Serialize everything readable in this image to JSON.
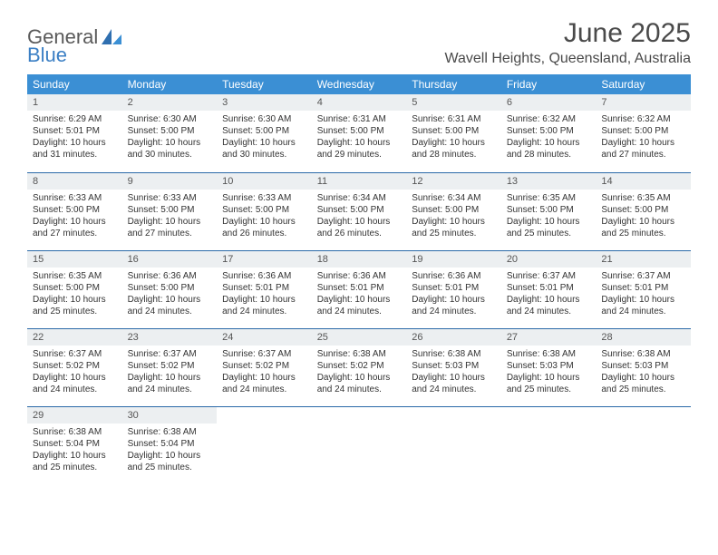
{
  "logo": {
    "word1": "General",
    "word2": "Blue"
  },
  "title": "June 2025",
  "location": "Wavell Heights, Queensland, Australia",
  "colors": {
    "header_bg": "#3b8fd4",
    "header_text": "#ffffff",
    "row_divider": "#2b6aa8",
    "daynum_bg": "#eceff1",
    "text": "#333333",
    "logo_gray": "#5a5a5a",
    "logo_blue": "#3b7fc4",
    "background": "#ffffff"
  },
  "typography": {
    "title_fontsize": 30,
    "location_fontsize": 16,
    "dayheader_fontsize": 12,
    "daynum_fontsize": 11,
    "body_fontsize": 10
  },
  "day_headers": [
    "Sunday",
    "Monday",
    "Tuesday",
    "Wednesday",
    "Thursday",
    "Friday",
    "Saturday"
  ],
  "weeks": [
    [
      {
        "num": "1",
        "sunrise": "Sunrise: 6:29 AM",
        "sunset": "Sunset: 5:01 PM",
        "dl1": "Daylight: 10 hours",
        "dl2": "and 31 minutes."
      },
      {
        "num": "2",
        "sunrise": "Sunrise: 6:30 AM",
        "sunset": "Sunset: 5:00 PM",
        "dl1": "Daylight: 10 hours",
        "dl2": "and 30 minutes."
      },
      {
        "num": "3",
        "sunrise": "Sunrise: 6:30 AM",
        "sunset": "Sunset: 5:00 PM",
        "dl1": "Daylight: 10 hours",
        "dl2": "and 30 minutes."
      },
      {
        "num": "4",
        "sunrise": "Sunrise: 6:31 AM",
        "sunset": "Sunset: 5:00 PM",
        "dl1": "Daylight: 10 hours",
        "dl2": "and 29 minutes."
      },
      {
        "num": "5",
        "sunrise": "Sunrise: 6:31 AM",
        "sunset": "Sunset: 5:00 PM",
        "dl1": "Daylight: 10 hours",
        "dl2": "and 28 minutes."
      },
      {
        "num": "6",
        "sunrise": "Sunrise: 6:32 AM",
        "sunset": "Sunset: 5:00 PM",
        "dl1": "Daylight: 10 hours",
        "dl2": "and 28 minutes."
      },
      {
        "num": "7",
        "sunrise": "Sunrise: 6:32 AM",
        "sunset": "Sunset: 5:00 PM",
        "dl1": "Daylight: 10 hours",
        "dl2": "and 27 minutes."
      }
    ],
    [
      {
        "num": "8",
        "sunrise": "Sunrise: 6:33 AM",
        "sunset": "Sunset: 5:00 PM",
        "dl1": "Daylight: 10 hours",
        "dl2": "and 27 minutes."
      },
      {
        "num": "9",
        "sunrise": "Sunrise: 6:33 AM",
        "sunset": "Sunset: 5:00 PM",
        "dl1": "Daylight: 10 hours",
        "dl2": "and 27 minutes."
      },
      {
        "num": "10",
        "sunrise": "Sunrise: 6:33 AM",
        "sunset": "Sunset: 5:00 PM",
        "dl1": "Daylight: 10 hours",
        "dl2": "and 26 minutes."
      },
      {
        "num": "11",
        "sunrise": "Sunrise: 6:34 AM",
        "sunset": "Sunset: 5:00 PM",
        "dl1": "Daylight: 10 hours",
        "dl2": "and 26 minutes."
      },
      {
        "num": "12",
        "sunrise": "Sunrise: 6:34 AM",
        "sunset": "Sunset: 5:00 PM",
        "dl1": "Daylight: 10 hours",
        "dl2": "and 25 minutes."
      },
      {
        "num": "13",
        "sunrise": "Sunrise: 6:35 AM",
        "sunset": "Sunset: 5:00 PM",
        "dl1": "Daylight: 10 hours",
        "dl2": "and 25 minutes."
      },
      {
        "num": "14",
        "sunrise": "Sunrise: 6:35 AM",
        "sunset": "Sunset: 5:00 PM",
        "dl1": "Daylight: 10 hours",
        "dl2": "and 25 minutes."
      }
    ],
    [
      {
        "num": "15",
        "sunrise": "Sunrise: 6:35 AM",
        "sunset": "Sunset: 5:00 PM",
        "dl1": "Daylight: 10 hours",
        "dl2": "and 25 minutes."
      },
      {
        "num": "16",
        "sunrise": "Sunrise: 6:36 AM",
        "sunset": "Sunset: 5:00 PM",
        "dl1": "Daylight: 10 hours",
        "dl2": "and 24 minutes."
      },
      {
        "num": "17",
        "sunrise": "Sunrise: 6:36 AM",
        "sunset": "Sunset: 5:01 PM",
        "dl1": "Daylight: 10 hours",
        "dl2": "and 24 minutes."
      },
      {
        "num": "18",
        "sunrise": "Sunrise: 6:36 AM",
        "sunset": "Sunset: 5:01 PM",
        "dl1": "Daylight: 10 hours",
        "dl2": "and 24 minutes."
      },
      {
        "num": "19",
        "sunrise": "Sunrise: 6:36 AM",
        "sunset": "Sunset: 5:01 PM",
        "dl1": "Daylight: 10 hours",
        "dl2": "and 24 minutes."
      },
      {
        "num": "20",
        "sunrise": "Sunrise: 6:37 AM",
        "sunset": "Sunset: 5:01 PM",
        "dl1": "Daylight: 10 hours",
        "dl2": "and 24 minutes."
      },
      {
        "num": "21",
        "sunrise": "Sunrise: 6:37 AM",
        "sunset": "Sunset: 5:01 PM",
        "dl1": "Daylight: 10 hours",
        "dl2": "and 24 minutes."
      }
    ],
    [
      {
        "num": "22",
        "sunrise": "Sunrise: 6:37 AM",
        "sunset": "Sunset: 5:02 PM",
        "dl1": "Daylight: 10 hours",
        "dl2": "and 24 minutes."
      },
      {
        "num": "23",
        "sunrise": "Sunrise: 6:37 AM",
        "sunset": "Sunset: 5:02 PM",
        "dl1": "Daylight: 10 hours",
        "dl2": "and 24 minutes."
      },
      {
        "num": "24",
        "sunrise": "Sunrise: 6:37 AM",
        "sunset": "Sunset: 5:02 PM",
        "dl1": "Daylight: 10 hours",
        "dl2": "and 24 minutes."
      },
      {
        "num": "25",
        "sunrise": "Sunrise: 6:38 AM",
        "sunset": "Sunset: 5:02 PM",
        "dl1": "Daylight: 10 hours",
        "dl2": "and 24 minutes."
      },
      {
        "num": "26",
        "sunrise": "Sunrise: 6:38 AM",
        "sunset": "Sunset: 5:03 PM",
        "dl1": "Daylight: 10 hours",
        "dl2": "and 24 minutes."
      },
      {
        "num": "27",
        "sunrise": "Sunrise: 6:38 AM",
        "sunset": "Sunset: 5:03 PM",
        "dl1": "Daylight: 10 hours",
        "dl2": "and 25 minutes."
      },
      {
        "num": "28",
        "sunrise": "Sunrise: 6:38 AM",
        "sunset": "Sunset: 5:03 PM",
        "dl1": "Daylight: 10 hours",
        "dl2": "and 25 minutes."
      }
    ],
    [
      {
        "num": "29",
        "sunrise": "Sunrise: 6:38 AM",
        "sunset": "Sunset: 5:04 PM",
        "dl1": "Daylight: 10 hours",
        "dl2": "and 25 minutes."
      },
      {
        "num": "30",
        "sunrise": "Sunrise: 6:38 AM",
        "sunset": "Sunset: 5:04 PM",
        "dl1": "Daylight: 10 hours",
        "dl2": "and 25 minutes."
      },
      null,
      null,
      null,
      null,
      null
    ]
  ]
}
